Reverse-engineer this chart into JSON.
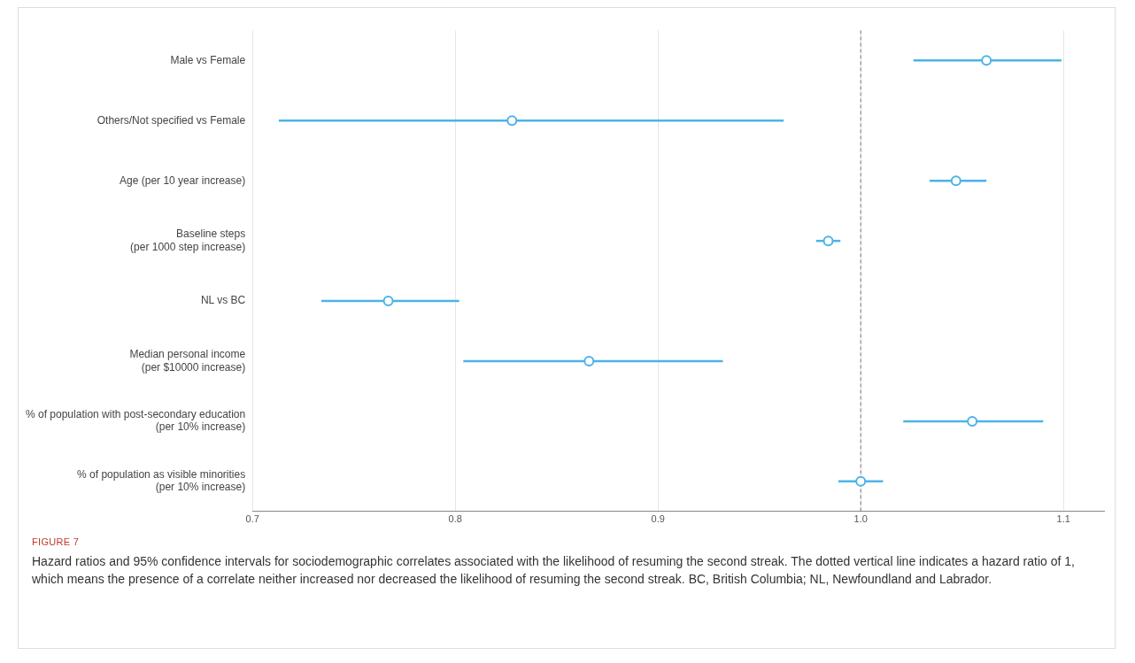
{
  "chart_data": {
    "type": "scatter",
    "orientation": "horizontal",
    "categories": [
      "Male vs Female",
      "Others/Not specified vs Female",
      "Age (per 10 year increase)",
      "Baseline steps\n(per 1000 step increase)",
      "NL vs BC",
      "Median personal income\n(per $10000 increase)",
      "% of population with post-secondary education\n(per 10% increase)",
      "% of population as visible minorities\n(per 10% increase)"
    ],
    "values": [
      1.062,
      0.828,
      1.047,
      0.984,
      0.767,
      0.866,
      1.055,
      1.0
    ],
    "errors": [
      [
        1.026,
        1.099
      ],
      [
        0.713,
        0.962
      ],
      [
        1.034,
        1.062
      ],
      [
        0.978,
        0.99
      ],
      [
        0.734,
        0.802
      ],
      [
        0.804,
        0.932
      ],
      [
        1.021,
        1.09
      ],
      [
        0.989,
        1.011
      ]
    ],
    "color": "#4db3e6",
    "marker": "circle",
    "xlim": [
      0.7,
      1.12
    ],
    "xticks": [
      {
        "value": 0.7,
        "label": "0.7"
      },
      {
        "value": 0.8,
        "label": "0.8"
      },
      {
        "value": 0.9,
        "label": "0.9"
      },
      {
        "value": 1.0,
        "label": "1.0"
      },
      {
        "value": 1.1,
        "label": "1.1"
      }
    ],
    "grid": "x",
    "ref_lines": [
      {
        "axis": "x",
        "value": 1.0,
        "color": "#777777",
        "line_style": "dashed"
      }
    ],
    "annotations": [
      "FIGURE 7",
      "Hazard ratios and 95% confidence intervals for sociodemographic correlates associated with the likelihood of resuming the second streak. The dotted vertical line indicates a hazard ratio of 1, which means the presence of a correlate neither increased nor decreased the likelihood of resuming the second streak. BC, British Columbia; NL, Newfoundland and Labrador."
    ]
  }
}
